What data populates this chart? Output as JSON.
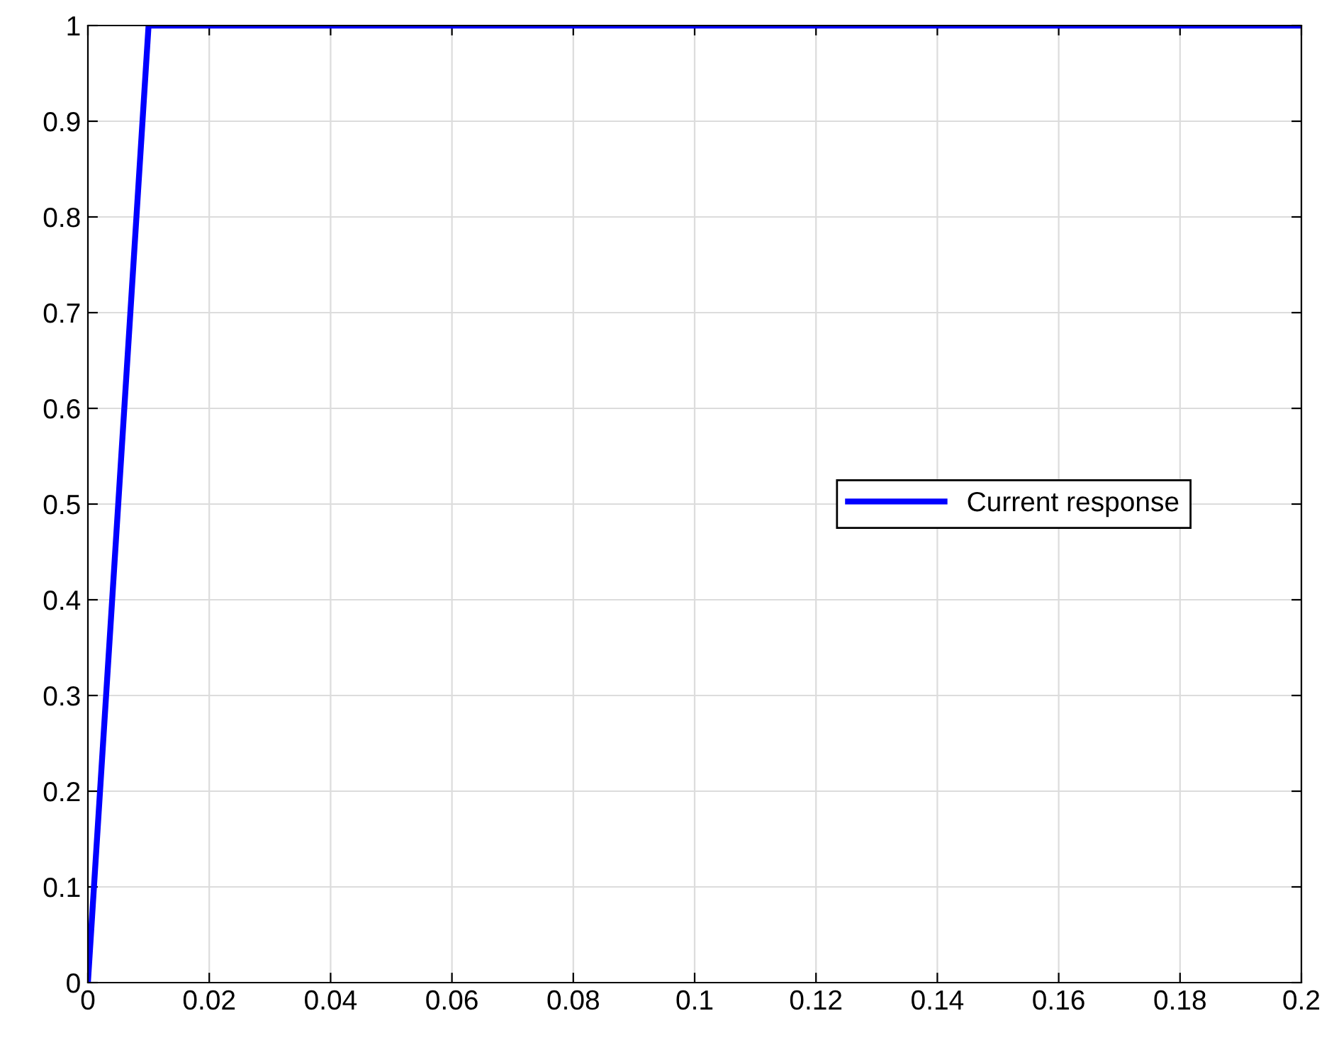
{
  "chart_data": {
    "type": "line",
    "x": [
      0,
      0.01,
      0.2
    ],
    "series": [
      {
        "name": "Current response",
        "color": "#0000ff",
        "values": [
          0,
          1,
          1
        ]
      }
    ],
    "xlim": [
      0,
      0.2
    ],
    "xticks": [
      0,
      0.02,
      0.04,
      0.06,
      0.08,
      0.1,
      0.12,
      0.14,
      0.16,
      0.18,
      0.2
    ],
    "ylim": [
      0,
      1
    ],
    "yticks": [
      0,
      0.1,
      0.2,
      0.3,
      0.4,
      0.5,
      0.6,
      0.7,
      0.8,
      0.9,
      1
    ],
    "grid": true,
    "legend": "right",
    "marker": "none",
    "line_style": "solid"
  }
}
